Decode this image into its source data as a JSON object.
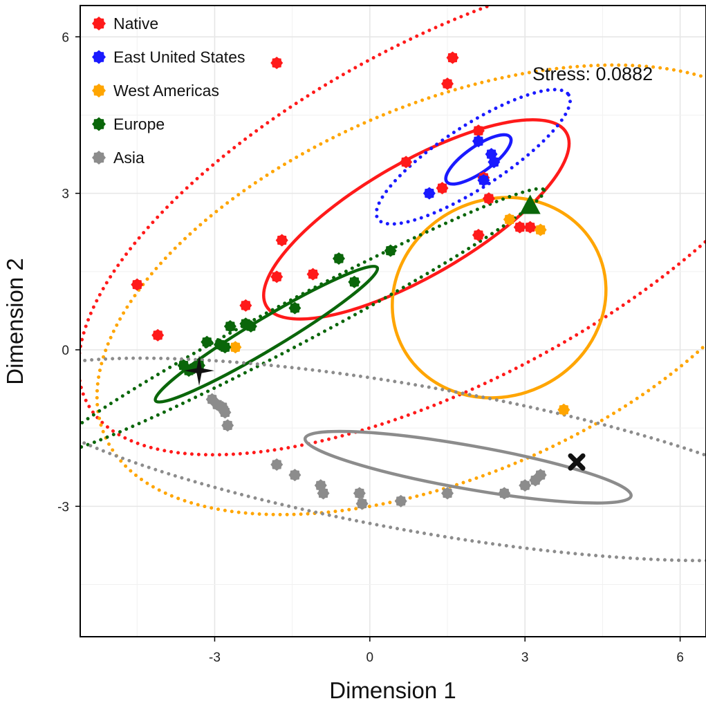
{
  "chart_data": {
    "type": "scatter",
    "title": "",
    "xlabel": "Dimension 1",
    "ylabel": "Dimension 2",
    "xlim": [
      -5.6,
      6.5
    ],
    "ylim": [
      -5.5,
      6.6
    ],
    "xticks": [
      -3,
      0,
      3,
      6
    ],
    "yticks": [
      -3,
      0,
      3,
      6
    ],
    "grid": true,
    "legend_position": "top-left",
    "annotation": "Stress: 0.0882",
    "series": [
      {
        "name": "Native",
        "color": "#ff1a1a",
        "points": [
          [
            -1.8,
            5.5
          ],
          [
            1.6,
            5.6
          ],
          [
            1.5,
            5.1
          ],
          [
            2.1,
            4.2
          ],
          [
            0.7,
            3.6
          ],
          [
            2.2,
            3.3
          ],
          [
            1.4,
            3.1
          ],
          [
            2.3,
            2.9
          ],
          [
            2.1,
            2.2
          ],
          [
            2.9,
            2.35
          ],
          [
            3.1,
            2.35
          ],
          [
            -1.7,
            2.1
          ],
          [
            -1.8,
            1.4
          ],
          [
            -1.1,
            1.45
          ],
          [
            -4.5,
            1.25
          ],
          [
            -2.4,
            0.85
          ],
          [
            -4.1,
            0.28
          ]
        ],
        "ellipses": [
          {
            "style": "solid",
            "cx": 0.9,
            "cy": 2.5,
            "rx": 3.35,
            "ry": 1.1,
            "angle": 30
          },
          {
            "style": "dotted",
            "cx": 1.6,
            "cy": 2.7,
            "rx": 8.0,
            "ry": 3.3,
            "angle": 28
          }
        ]
      },
      {
        "name": "East United States",
        "color": "#1a1aff",
        "points": [
          [
            2.1,
            4.0
          ],
          [
            2.35,
            3.75
          ],
          [
            2.4,
            3.6
          ],
          [
            1.15,
            3.0
          ],
          [
            2.2,
            3.25
          ]
        ],
        "ellipses": [
          {
            "style": "solid",
            "cx": 2.1,
            "cy": 3.65,
            "rx": 0.75,
            "ry": 0.25,
            "angle": 35
          },
          {
            "style": "dotted",
            "cx": 2.0,
            "cy": 3.7,
            "rx": 2.2,
            "ry": 0.6,
            "angle": 33
          }
        ]
      },
      {
        "name": "West Americas",
        "color": "#ffa500",
        "points": [
          [
            2.7,
            2.5
          ],
          [
            3.3,
            2.3
          ],
          [
            -2.6,
            0.05
          ],
          [
            3.75,
            -1.15
          ]
        ],
        "ellipses": [
          {
            "style": "solid",
            "cx": 2.5,
            "cy": 1.0,
            "rx": 2.1,
            "ry": 1.9,
            "angle": 25
          },
          {
            "style": "dotted",
            "cx": 1.5,
            "cy": 1.15,
            "rx": 7.2,
            "ry": 3.6,
            "angle": 23
          }
        ]
      },
      {
        "name": "Europe",
        "color": "#0a660a",
        "points": [
          [
            -0.6,
            1.75
          ],
          [
            0.4,
            1.9
          ],
          [
            -0.3,
            1.3
          ],
          [
            -1.45,
            0.8
          ],
          [
            -2.7,
            0.45
          ],
          [
            -2.4,
            0.5
          ],
          [
            -2.3,
            0.45
          ],
          [
            -3.15,
            0.15
          ],
          [
            -2.9,
            0.1
          ],
          [
            -2.8,
            0.05
          ],
          [
            -3.3,
            -0.3
          ],
          [
            -3.6,
            -0.3
          ],
          [
            -3.5,
            -0.4
          ],
          [
            -3.4,
            -0.35
          ]
        ],
        "ellipses": [
          {
            "style": "solid",
            "cx": -2.0,
            "cy": 0.3,
            "rx": 2.5,
            "ry": 0.3,
            "angle": 31
          },
          {
            "style": "dotted",
            "cx": -1.4,
            "cy": 0.55,
            "rx": 5.4,
            "ry": 0.42,
            "angle": 28
          }
        ]
      },
      {
        "name": "Asia",
        "color": "#8c8c8c",
        "points": [
          [
            -3.05,
            -0.95
          ],
          [
            -2.95,
            -1.05
          ],
          [
            -2.85,
            -1.1
          ],
          [
            -2.8,
            -1.2
          ],
          [
            -2.75,
            -1.45
          ],
          [
            -1.8,
            -2.2
          ],
          [
            -1.45,
            -2.4
          ],
          [
            -0.95,
            -2.6
          ],
          [
            -0.9,
            -2.75
          ],
          [
            -0.2,
            -2.75
          ],
          [
            -0.15,
            -2.95
          ],
          [
            0.6,
            -2.9
          ],
          [
            1.5,
            -2.75
          ],
          [
            2.6,
            -2.75
          ],
          [
            3.0,
            -2.6
          ],
          [
            3.2,
            -2.5
          ],
          [
            3.3,
            -2.4
          ]
        ],
        "ellipses": [
          {
            "style": "solid",
            "cx": 1.9,
            "cy": -2.25,
            "rx": 3.2,
            "ry": 0.42,
            "angle": -10
          },
          {
            "style": "dotted",
            "cx": 1.0,
            "cy": -2.1,
            "rx": 8.0,
            "ry": 1.4,
            "angle": -10
          }
        ]
      }
    ],
    "special_markers": [
      {
        "shape": "triangle",
        "color": "#0a660a",
        "x": 3.1,
        "y": 2.75
      },
      {
        "shape": "four-point-star",
        "color": "#111111",
        "x": -3.3,
        "y": -0.4
      },
      {
        "shape": "x-cross",
        "color": "#111111",
        "x": 4.0,
        "y": -2.15
      }
    ]
  }
}
